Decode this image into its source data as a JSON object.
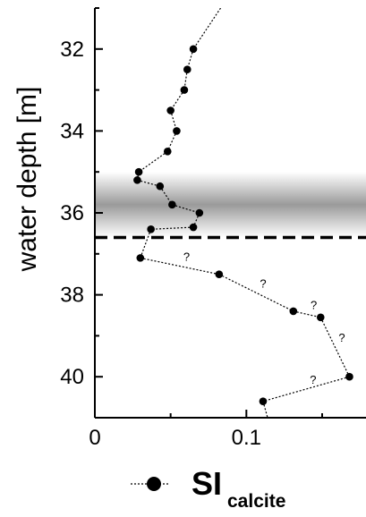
{
  "chart_data": {
    "type": "line",
    "ylabel": "water depth [m]",
    "xlabel": "",
    "xlim": [
      0,
      0.17
    ],
    "ylim": [
      31,
      41
    ],
    "y_inverted": true,
    "x_ticks": [
      "0",
      "0.1"
    ],
    "y_ticks": [
      "32",
      "34",
      "36",
      "38",
      "40"
    ],
    "series": [
      {
        "name": "SI",
        "name_subscript": "calcite",
        "color": "#000000",
        "marker": "filled-circle",
        "line_style": "dotted",
        "points": [
          {
            "x": 0.083,
            "y": 31.0
          },
          {
            "x": 0.065,
            "y": 32.0
          },
          {
            "x": 0.061,
            "y": 32.5
          },
          {
            "x": 0.059,
            "y": 33.0
          },
          {
            "x": 0.05,
            "y": 33.5
          },
          {
            "x": 0.054,
            "y": 34.0
          },
          {
            "x": 0.048,
            "y": 34.5
          },
          {
            "x": 0.029,
            "y": 35.0
          },
          {
            "x": 0.028,
            "y": 35.2
          },
          {
            "x": 0.043,
            "y": 35.35
          },
          {
            "x": 0.051,
            "y": 35.8
          },
          {
            "x": 0.069,
            "y": 36.0
          },
          {
            "x": 0.065,
            "y": 36.35
          },
          {
            "x": 0.037,
            "y": 36.4
          },
          {
            "x": 0.03,
            "y": 37.1
          },
          {
            "x": 0.082,
            "y": 37.5
          },
          {
            "x": 0.131,
            "y": 38.4
          },
          {
            "x": 0.149,
            "y": 38.55
          },
          {
            "x": 0.168,
            "y": 40.0
          },
          {
            "x": 0.111,
            "y": 40.6
          },
          {
            "x": 0.114,
            "y": 41.0
          }
        ],
        "uncertain_segments_label": "?",
        "uncertain_segment_indices": [
          14,
          15,
          16,
          17,
          18
        ]
      }
    ],
    "shaded_band": {
      "y_top": 35.0,
      "y_bottom": 36.6,
      "color": "#9a9a9a"
    },
    "dashed_line_y": 36.6,
    "legend": {
      "placement": "bottom",
      "label": "SI",
      "subscript": "calcite"
    },
    "grid": false
  }
}
